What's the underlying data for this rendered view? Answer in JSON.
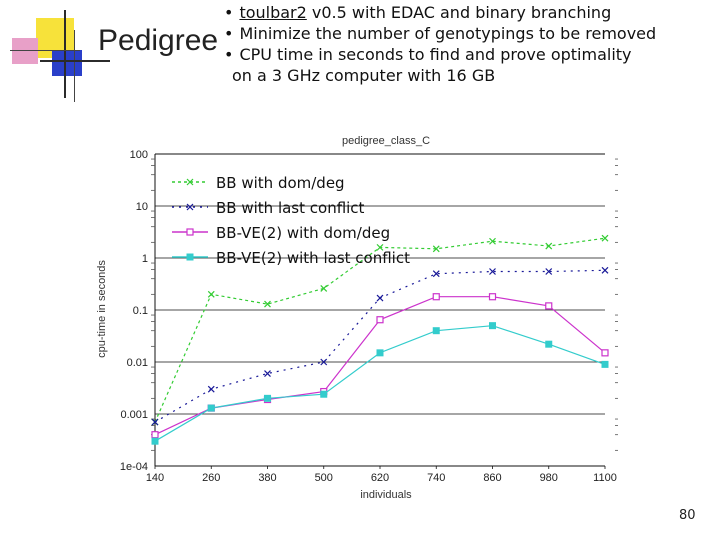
{
  "slide": {
    "title": "Pedigree",
    "bullet1_link": "toulbar2",
    "bullet1_rest": " v0.5 with EDAC and binary branching",
    "bullet2": "Minimize the number of genotypings to be removed",
    "bullet3_line1": "CPU time in seconds to find and prove optimality",
    "bullet3_line2": "on a 3 GHz computer with 16 GB",
    "page_number": "80"
  },
  "chart_data": {
    "type": "line",
    "title": "pedigree_class_C",
    "xlabel": "individuals",
    "ylabel": "cpu-time in seconds",
    "y_scale": "log",
    "ylim": [
      0.0001,
      100
    ],
    "xlim": [
      140,
      1100
    ],
    "x": [
      140,
      260,
      380,
      500,
      620,
      740,
      860,
      980,
      1100
    ],
    "x_tick_labels": [
      "140",
      "260",
      "380",
      "500",
      "620",
      "740",
      "860",
      "980",
      "1100"
    ],
    "y_ticks": [
      0.0001,
      0.001,
      0.01,
      0.1,
      1,
      10,
      100
    ],
    "y_tick_labels": [
      "1e-04",
      "0.001",
      "0.01",
      "0.1",
      "1",
      "10",
      "100"
    ],
    "legend_position": "top-left",
    "series": [
      {
        "name": "BB with dom/deg",
        "color": "#33cc33",
        "marker": "x",
        "dash": "3,3",
        "values": [
          0.0007,
          0.2,
          0.13,
          0.26,
          1.6,
          1.5,
          2.1,
          1.7,
          2.4
        ]
      },
      {
        "name": "BB with last conflict",
        "color": "#1a1a99",
        "marker": "x",
        "dash": "2,5",
        "values": [
          0.0007,
          0.003,
          0.006,
          0.01,
          0.17,
          0.5,
          0.55,
          0.55,
          0.58
        ]
      },
      {
        "name": "BB-VE(2) with dom/deg",
        "color": "#cc33cc",
        "marker": "square-open",
        "dash": "",
        "values": [
          0.0004,
          0.0013,
          0.0019,
          0.0027,
          0.065,
          0.18,
          0.18,
          0.12,
          0.015
        ]
      },
      {
        "name": "BB-VE(2) with last conflict",
        "color": "#33cccc",
        "marker": "square",
        "dash": "",
        "values": [
          0.0003,
          0.0013,
          0.002,
          0.0024,
          0.015,
          0.04,
          0.05,
          0.022,
          0.009
        ]
      }
    ]
  }
}
